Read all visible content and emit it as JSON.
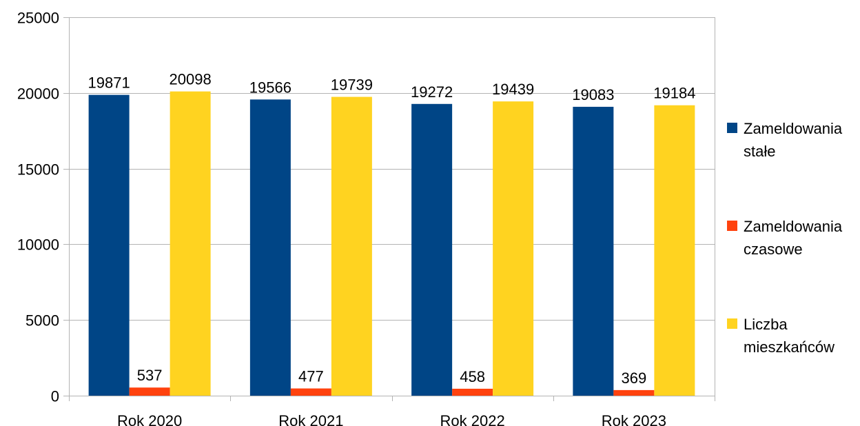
{
  "chart_data": {
    "type": "bar",
    "categories": [
      "Rok 2020",
      "Rok 2021",
      "Rok 2022",
      "Rok 2023"
    ],
    "series": [
      {
        "name": "Zameldowania stałe",
        "values": [
          19871,
          19566,
          19272,
          19083
        ],
        "color": "#004586"
      },
      {
        "name": "Zameldowania czasowe",
        "values": [
          537,
          477,
          458,
          369
        ],
        "color": "#ff420e"
      },
      {
        "name": "Liczba mieszkańców",
        "values": [
          20098,
          19739,
          19439,
          19184
        ],
        "color": "#ffd320"
      }
    ],
    "yticks": [
      "0",
      "5000",
      "10000",
      "15000",
      "20000",
      "25000"
    ],
    "ylim": [
      0,
      25000
    ],
    "title": "",
    "xlabel": "",
    "ylabel": "",
    "grid": "horizontal",
    "legend_position": "right"
  }
}
